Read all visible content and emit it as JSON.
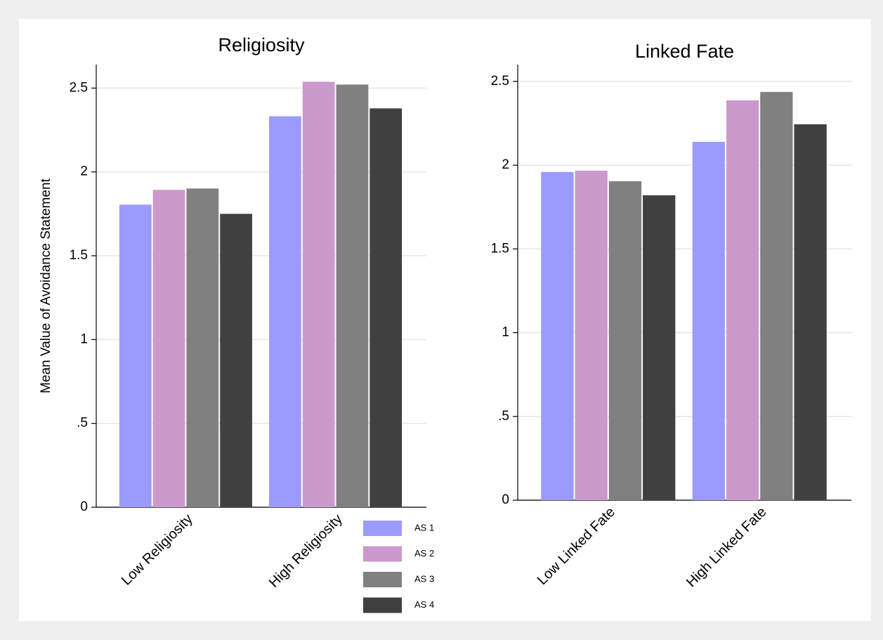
{
  "chart_data": [
    {
      "type": "bar",
      "title": "Religiosity",
      "y_label": "Mean Value of Avoidance Statement",
      "categories": [
        "Low Religiosity",
        "High Religiosity"
      ],
      "series": [
        {
          "name": "AS 1",
          "color": "#9b9bfd",
          "values": [
            1.805,
            2.332
          ]
        },
        {
          "name": "AS 2",
          "color": "#cc99cc",
          "values": [
            1.893,
            2.538
          ]
        },
        {
          "name": "AS 3",
          "color": "#808080",
          "values": [
            1.901,
            2.521
          ]
        },
        {
          "name": "AS 4",
          "color": "#404040",
          "values": [
            1.75,
            2.379
          ]
        }
      ],
      "ylim": [
        0,
        2.64
      ],
      "yticks": [
        0,
        {
          "value": 0.5,
          "label": ".5"
        },
        1,
        1.5,
        2,
        2.5
      ],
      "grid": true,
      "legend": "bottom-right"
    },
    {
      "type": "bar",
      "title": "Linked Fate",
      "categories": [
        "Low Linked Fate",
        "High Linked Fate"
      ],
      "series": [
        {
          "color": "#9b9bfd",
          "values": [
            1.959,
            2.139
          ]
        },
        {
          "color": "#cc99cc",
          "values": [
            1.967,
            2.387
          ]
        },
        {
          "color": "#808080",
          "values": [
            1.904,
            2.437
          ]
        },
        {
          "color": "#404040",
          "values": [
            1.82,
            2.244
          ]
        }
      ],
      "ylim": [
        0,
        2.6
      ],
      "yticks": [
        0,
        {
          "value": 0.5,
          "label": ".5"
        },
        1,
        1.5,
        2,
        2.5
      ],
      "grid": true
    }
  ]
}
